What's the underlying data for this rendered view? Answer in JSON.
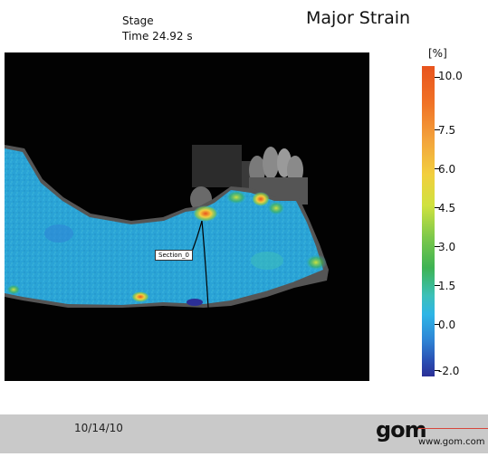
{
  "header": {
    "stage_label": "Stage",
    "time_label": "Time  24.92 s",
    "title": "Major Strain"
  },
  "viewport": {
    "section_label": "Section_0"
  },
  "legend": {
    "unit": "[%]",
    "ticks": [
      "10.0",
      "7.5",
      "6.0",
      "4.5",
      "3.0",
      "1.5",
      "0.0",
      "-2.0"
    ],
    "colors": {
      "max": "#e8541e",
      "mid": "#7ec94b",
      "low": "#2eb5e6",
      "min": "#2b2f96"
    }
  },
  "footer": {
    "date": "10/14/10",
    "logo": "gom",
    "url": "www.gom.com",
    "accent": "#d6463c"
  }
}
